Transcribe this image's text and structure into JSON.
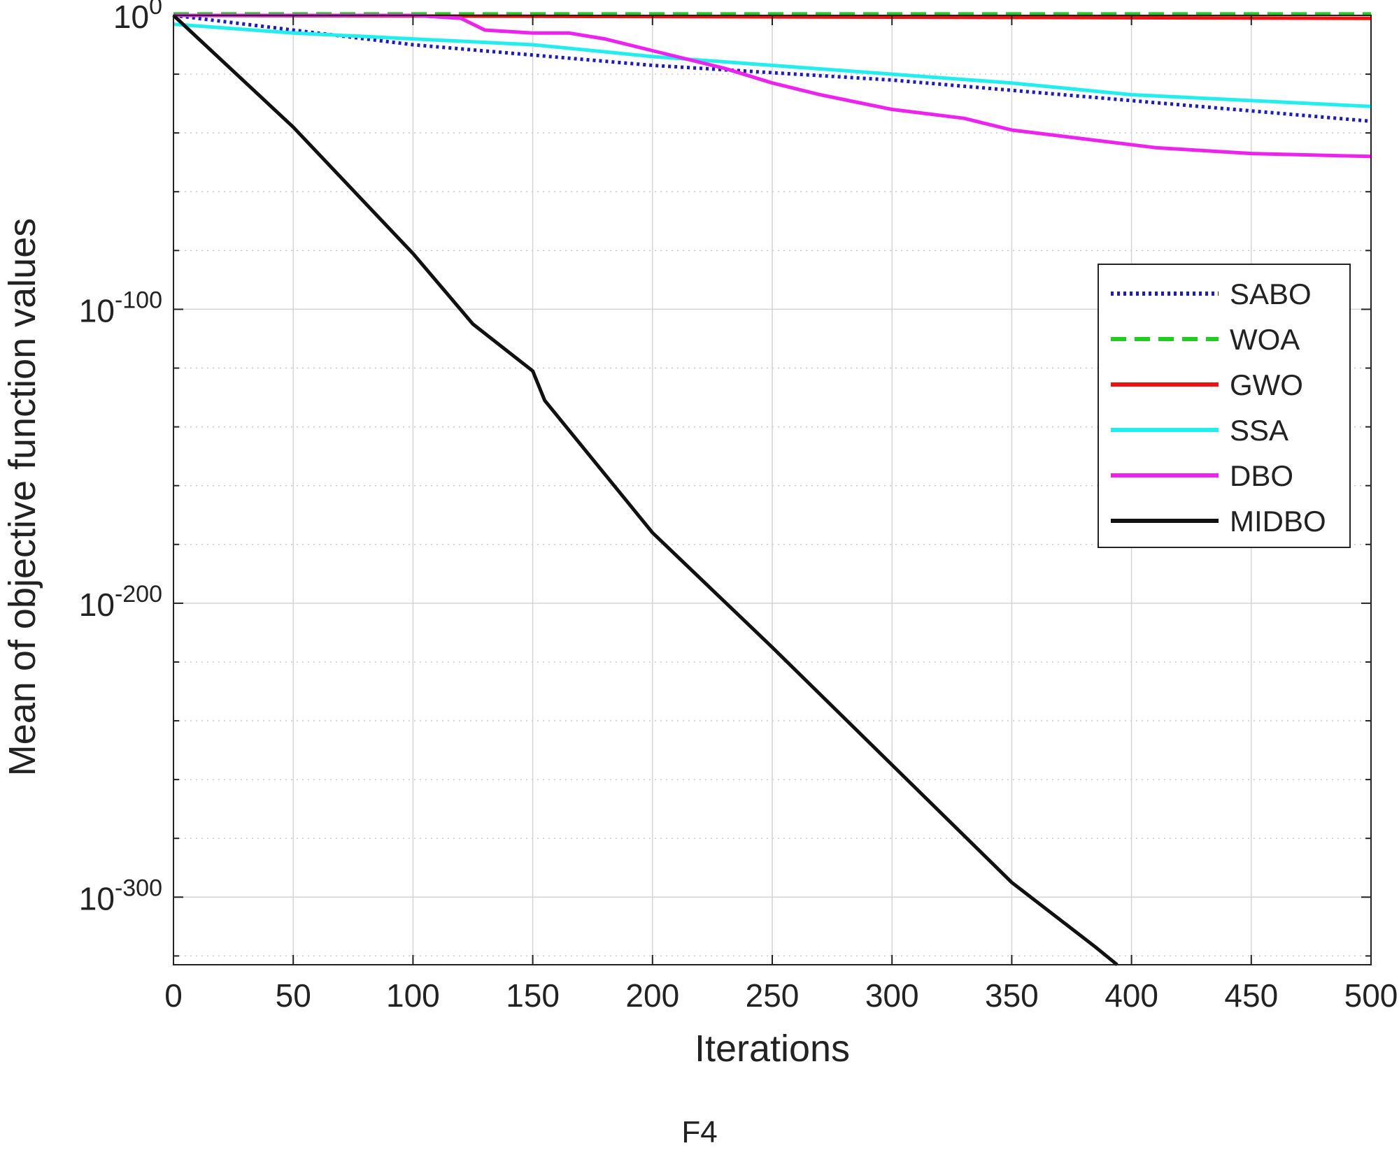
{
  "caption": "F4",
  "chart_data": {
    "type": "line",
    "title": "",
    "xlabel": "Iterations",
    "ylabel": "Mean of objective function values",
    "xlim": [
      0,
      500
    ],
    "ylim_log10": [
      -323,
      0
    ],
    "yscale": "log",
    "grid": true,
    "legend_position": "right",
    "x_ticks": [
      0,
      50,
      100,
      150,
      200,
      250,
      300,
      350,
      400,
      450,
      500
    ],
    "y_ticks": [
      {
        "base": "10",
        "exp": "0",
        "log10": 0
      },
      {
        "base": "10",
        "exp": "-100",
        "log10": -100
      },
      {
        "base": "10",
        "exp": "-200",
        "log10": -200
      },
      {
        "base": "10",
        "exp": "-300",
        "log10": -300
      }
    ],
    "series": [
      {
        "name": "SABO",
        "color": "#1a1ac8",
        "style": "dotted",
        "x": [
          0,
          100,
          200,
          300,
          400,
          500
        ],
        "log10_y": [
          0,
          -10,
          -17,
          -22,
          -29,
          -36
        ]
      },
      {
        "name": "WOA",
        "color": "#22cc22",
        "style": "dashed",
        "x": [
          0,
          500
        ],
        "log10_y": [
          0.5,
          0.5
        ]
      },
      {
        "name": "GWO",
        "color": "#ee1111",
        "style": "solid",
        "x": [
          0,
          250,
          500
        ],
        "log10_y": [
          0,
          -0.5,
          -1
        ]
      },
      {
        "name": "SSA",
        "color": "#22eeee",
        "style": "solid",
        "x": [
          0,
          50,
          100,
          150,
          200,
          250,
          300,
          350,
          400,
          450,
          500
        ],
        "log10_y": [
          -3,
          -6,
          -8,
          -10,
          -14,
          -17,
          -20,
          -23,
          -27,
          -29,
          -31
        ]
      },
      {
        "name": "DBO",
        "color": "#ee22ee",
        "style": "solid",
        "x": [
          0,
          60,
          100,
          120,
          125,
          130,
          150,
          165,
          180,
          200,
          230,
          250,
          270,
          300,
          330,
          350,
          380,
          410,
          450,
          500
        ],
        "log10_y": [
          0,
          0,
          0,
          -1,
          -3,
          -5,
          -6,
          -6,
          -8,
          -12,
          -18,
          -23,
          -27,
          -32,
          -35,
          -39,
          -42,
          -45,
          -47,
          -48
        ]
      },
      {
        "name": "MIDBO",
        "color": "#111111",
        "style": "solid",
        "x": [
          0,
          50,
          100,
          125,
          150,
          155,
          200,
          250,
          300,
          350,
          385,
          394
        ],
        "log10_y": [
          0,
          -38,
          -81,
          -105,
          -121,
          -131,
          -176,
          -215,
          -255,
          -295,
          -317,
          -323
        ]
      }
    ]
  }
}
